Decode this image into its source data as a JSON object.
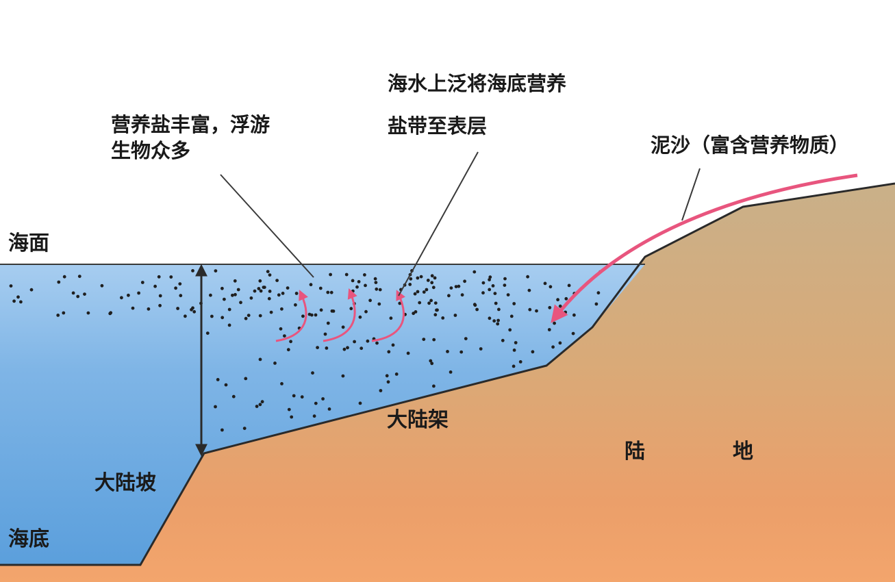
{
  "labels": {
    "sea_surface": "海面",
    "sea_floor": "海底",
    "continental_slope": "大陆坡",
    "continental_shelf": "大陆架",
    "land_left": "陆",
    "land_right": "地",
    "plankton_line1": "营养盐丰富，浮游",
    "plankton_line2": "生物众多",
    "upwelling_line1": "海水上泛将海底营养",
    "upwelling_line2": "盐带至表层",
    "sediment": "泥沙（富含营养物质）"
  },
  "colors": {
    "sea": "#5b9fdc",
    "sea_light": "#a7cdf0",
    "land_top": "#c6ae86",
    "land_bottom": "#f0a26a",
    "arrow_pink": "#e8557e",
    "outline": "#2a2a2a"
  },
  "icons": {
    "depth_arrow": "double-headed-arrow-icon",
    "upwelling_arrow": "curved-up-arrow-icon",
    "sediment_arrow": "curved-arrow-icon"
  }
}
